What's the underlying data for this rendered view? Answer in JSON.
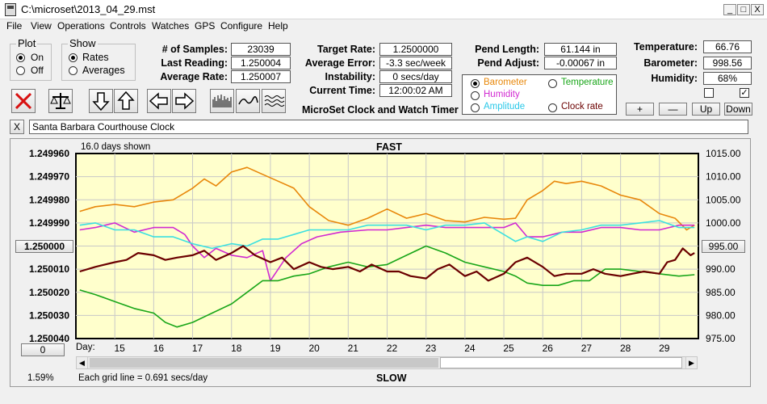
{
  "window": {
    "title": "C:\\microset\\2013_04_29.mst",
    "min_label": "_",
    "max_label": "□",
    "close_label": "X"
  },
  "menu": [
    "File",
    "View",
    "Operations",
    "Controls",
    "Watches",
    "GPS",
    "Configure",
    "Help"
  ],
  "plot_group": {
    "label": "Plot",
    "on": "On",
    "off": "Off",
    "selected": "On"
  },
  "show_group": {
    "label": "Show",
    "rates": "Rates",
    "averages": "Averages",
    "selected": "Rates"
  },
  "stats": {
    "samples_label": "# of Samples:",
    "samples": "23039",
    "last_reading_label": "Last Reading:",
    "last_reading": "1.250004",
    "average_rate_label": "Average Rate:",
    "average_rate": "1.250007",
    "target_rate_label": "Target Rate:",
    "target_rate": "1.2500000",
    "average_error_label": "Average Error:",
    "average_error": "-3.3 sec/week",
    "instability_label": "Instability:",
    "instability": "0 secs/day",
    "current_time_label": "Current Time:",
    "current_time": "12:00:02 AM",
    "pend_length_label": "Pend Length:",
    "pend_length": "61.144 in",
    "pend_adjust_label": "Pend Adjust:",
    "pend_adjust": "-0.00067 in",
    "temperature_label": "Temperature:",
    "temperature": "66.76",
    "barometer_label": "Barometer:",
    "barometer": "998.56",
    "humidity_label": "Humidity:",
    "humidity": "68%"
  },
  "app_caption": "MicroSet Clock and Watch Timer",
  "legend": {
    "barometer": "Barometer",
    "temperature": "Temperature",
    "humidity": "Humidity",
    "amplitude": "Amplitude",
    "clock_rate": "Clock rate",
    "selected": "Barometer"
  },
  "adjust_buttons": {
    "plus": "+",
    "minus": "—",
    "up": "Up",
    "down": "Down"
  },
  "checkboxes": {
    "left_checked": false,
    "right_checked": true,
    "check_mark": "✓"
  },
  "clock_name": "Santa Barbara Courthouse Clock",
  "clear_button": "X",
  "colors": {
    "barometer": "#e8870a",
    "temperature": "#19a619",
    "humidity": "#d12ad1",
    "amplitude": "#3ce0e0",
    "clock_rate": "#6b0000",
    "plot_bg": "#ffffcc"
  },
  "chart_data": {
    "type": "line",
    "top_label": "FAST",
    "bottom_label": "SLOW",
    "days_shown": "16.0 days shown",
    "grid_note": "Each grid line = 0.691 secs/day",
    "percent": "1.59%",
    "x_label": "Day:",
    "x_ticks": [
      "15",
      "16",
      "17",
      "18",
      "19",
      "20",
      "21",
      "22",
      "23",
      "24",
      "25",
      "26",
      "27",
      "28",
      "29"
    ],
    "xlim": [
      14,
      30
    ],
    "left_axis": {
      "ticks": [
        "1.249960",
        "1.249970",
        "1.249980",
        "1.249990",
        "1.250000",
        "1.250010",
        "1.250020",
        "1.250030",
        "1.250040"
      ],
      "ylim": [
        1.24996,
        1.25004
      ],
      "inverted": true,
      "center_button": "1.250000",
      "bottom_button": "0"
    },
    "right_axis": {
      "ticks": [
        "1015.00",
        "1010.00",
        "1005.00",
        "1000.00",
        "995.00",
        "990.00",
        "985.00",
        "980.00",
        "975.00"
      ],
      "ylim": [
        975,
        1015
      ],
      "center_button": "995.00"
    },
    "series": [
      {
        "key": "barometer",
        "axis": "right",
        "x": [
          14.1,
          14.5,
          15.0,
          15.5,
          16.0,
          16.5,
          17.0,
          17.3,
          17.6,
          18.0,
          18.4,
          18.8,
          19.2,
          19.6,
          20.0,
          20.5,
          21.0,
          21.5,
          22.0,
          22.5,
          23.0,
          23.5,
          24.0,
          24.5,
          25.0,
          25.3,
          25.6,
          26.0,
          26.3,
          26.6,
          27.0,
          27.5,
          28.0,
          28.5,
          29.0,
          29.4,
          29.7,
          29.9
        ],
        "y": [
          1002.5,
          1003.5,
          1004,
          1003.5,
          1004.5,
          1005,
          1007.5,
          1009.5,
          1008,
          1011,
          1012,
          1010.5,
          1009,
          1007.5,
          1003.5,
          1000.5,
          999.5,
          1001,
          1003,
          1001,
          1002,
          1000.5,
          1000.2,
          1001.2,
          1000.8,
          1001,
          1005,
          1007,
          1009,
          1008.5,
          1009,
          1008,
          1006,
          1005,
          1002,
          1001,
          998.5,
          999.5
        ]
      },
      {
        "key": "humidity",
        "axis": "left",
        "x": [
          14.1,
          14.5,
          15.0,
          15.5,
          16.0,
          16.5,
          16.8,
          17.0,
          17.3,
          17.6,
          18.0,
          18.4,
          18.8,
          19.0,
          19.4,
          19.8,
          20.2,
          20.8,
          21.5,
          22.0,
          22.5,
          23.0,
          23.5,
          24.0,
          24.5,
          25.0,
          25.3,
          25.6,
          26.0,
          26.5,
          27.0,
          27.5,
          28.0,
          28.5,
          29.0,
          29.5,
          29.9
        ],
        "y": [
          1.249993,
          1.249992,
          1.24999,
          1.249994,
          1.249992,
          1.249992,
          1.249995,
          1.25,
          1.250005,
          1.250001,
          1.250004,
          1.250005,
          1.250002,
          1.250015,
          1.250005,
          1.249999,
          1.249996,
          1.249994,
          1.249993,
          1.249993,
          1.249992,
          1.249991,
          1.249992,
          1.249992,
          1.249992,
          1.249992,
          1.24999,
          1.249996,
          1.249996,
          1.249994,
          1.249994,
          1.249992,
          1.249992,
          1.249993,
          1.249993,
          1.249991,
          1.249991
        ]
      },
      {
        "key": "amplitude",
        "axis": "left",
        "x": [
          14.1,
          14.5,
          15.0,
          15.5,
          16.0,
          16.5,
          17.0,
          17.5,
          18.0,
          18.4,
          18.8,
          19.2,
          19.6,
          20.0,
          20.5,
          21.0,
          21.5,
          22.0,
          22.5,
          23.0,
          23.5,
          24.0,
          24.5,
          25.0,
          25.3,
          25.6,
          26.0,
          26.5,
          27.0,
          27.5,
          28.0,
          28.5,
          29.0,
          29.5,
          29.9
        ],
        "y": [
          1.249991,
          1.24999,
          1.249993,
          1.249993,
          1.249996,
          1.249996,
          1.249999,
          1.250001,
          1.249999,
          1.25,
          1.249997,
          1.249997,
          1.249995,
          1.249993,
          1.249993,
          1.249993,
          1.249991,
          1.249991,
          1.249991,
          1.249993,
          1.249991,
          1.249991,
          1.24999,
          1.249995,
          1.249998,
          1.249996,
          1.249998,
          1.249994,
          1.249993,
          1.249991,
          1.249991,
          1.24999,
          1.249989,
          1.249992,
          1.249992
        ]
      },
      {
        "key": "temperature",
        "axis": "right",
        "x": [
          14.1,
          14.5,
          15.0,
          15.5,
          16.0,
          16.3,
          16.6,
          17.0,
          17.5,
          18.0,
          18.4,
          18.8,
          19.2,
          19.6,
          20.0,
          20.5,
          21.0,
          21.5,
          22.0,
          22.5,
          23.0,
          23.5,
          24.0,
          24.5,
          25.0,
          25.3,
          25.6,
          26.0,
          26.4,
          26.8,
          27.2,
          27.6,
          28.0,
          28.5,
          29.0,
          29.5,
          29.9
        ],
        "y": [
          985.5,
          984.5,
          983,
          981.5,
          980.5,
          978.5,
          977.5,
          978.5,
          980.5,
          982.5,
          985,
          987.5,
          987.5,
          988.5,
          989,
          990.5,
          991.5,
          990.5,
          991,
          993,
          995,
          993.5,
          991.5,
          990.5,
          989.5,
          988.5,
          987,
          986.5,
          986.5,
          987.5,
          987.5,
          990,
          990,
          989.5,
          989,
          988.5,
          988.8
        ]
      },
      {
        "key": "clock_rate",
        "axis": "left",
        "x": [
          14.1,
          14.5,
          15.0,
          15.3,
          15.6,
          16.0,
          16.3,
          16.6,
          17.0,
          17.3,
          17.6,
          18.0,
          18.3,
          18.6,
          19.0,
          19.3,
          19.6,
          20.0,
          20.3,
          20.6,
          21.0,
          21.3,
          21.6,
          22.0,
          22.3,
          22.6,
          23.0,
          23.3,
          23.6,
          24.0,
          24.3,
          24.6,
          25.0,
          25.3,
          25.6,
          26.0,
          26.3,
          26.6,
          27.0,
          27.3,
          27.6,
          28.0,
          28.3,
          28.6,
          29.0,
          29.2,
          29.4,
          29.6,
          29.8,
          29.9
        ],
        "y": [
          1.250011,
          1.250009,
          1.250007,
          1.250006,
          1.250003,
          1.250004,
          1.250006,
          1.250005,
          1.250004,
          1.250002,
          1.250006,
          1.250003,
          1.25,
          1.250004,
          1.250007,
          1.250005,
          1.25001,
          1.250007,
          1.250009,
          1.25001,
          1.250009,
          1.250011,
          1.250008,
          1.250011,
          1.250011,
          1.250013,
          1.250014,
          1.25001,
          1.250008,
          1.250013,
          1.250011,
          1.250015,
          1.250012,
          1.250007,
          1.250005,
          1.250009,
          1.250013,
          1.250012,
          1.250012,
          1.25001,
          1.250012,
          1.250013,
          1.250012,
          1.250011,
          1.250012,
          1.250007,
          1.250006,
          1.250001,
          1.250004,
          1.250003
        ]
      }
    ]
  }
}
